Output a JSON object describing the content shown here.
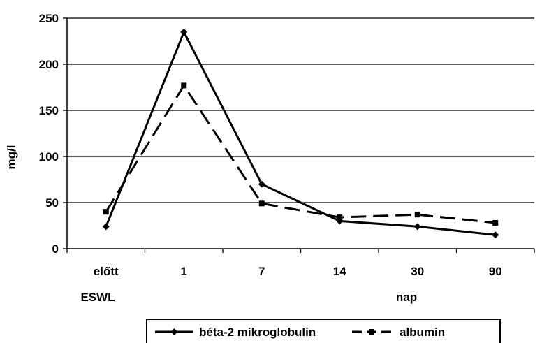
{
  "chart_data": {
    "type": "line",
    "categories": [
      "előtt",
      "1",
      "7",
      "14",
      "30",
      "90"
    ],
    "category_sublabels": {
      "first": "ESWL",
      "last": "nap"
    },
    "ylabel": "mg/l",
    "ylim": [
      0,
      250
    ],
    "yticks": [
      0,
      50,
      100,
      150,
      200,
      250
    ],
    "grid": true,
    "legend_position": "bottom",
    "series": [
      {
        "name": "béta-2 mikroglobulin",
        "values": [
          24,
          235,
          70,
          30,
          24,
          15
        ],
        "style": "solid",
        "marker": "diamond",
        "color": "#000000"
      },
      {
        "name": "albumin",
        "values": [
          40,
          177,
          49,
          34,
          37,
          28
        ],
        "style": "dashed",
        "marker": "square",
        "color": "#000000"
      }
    ]
  }
}
